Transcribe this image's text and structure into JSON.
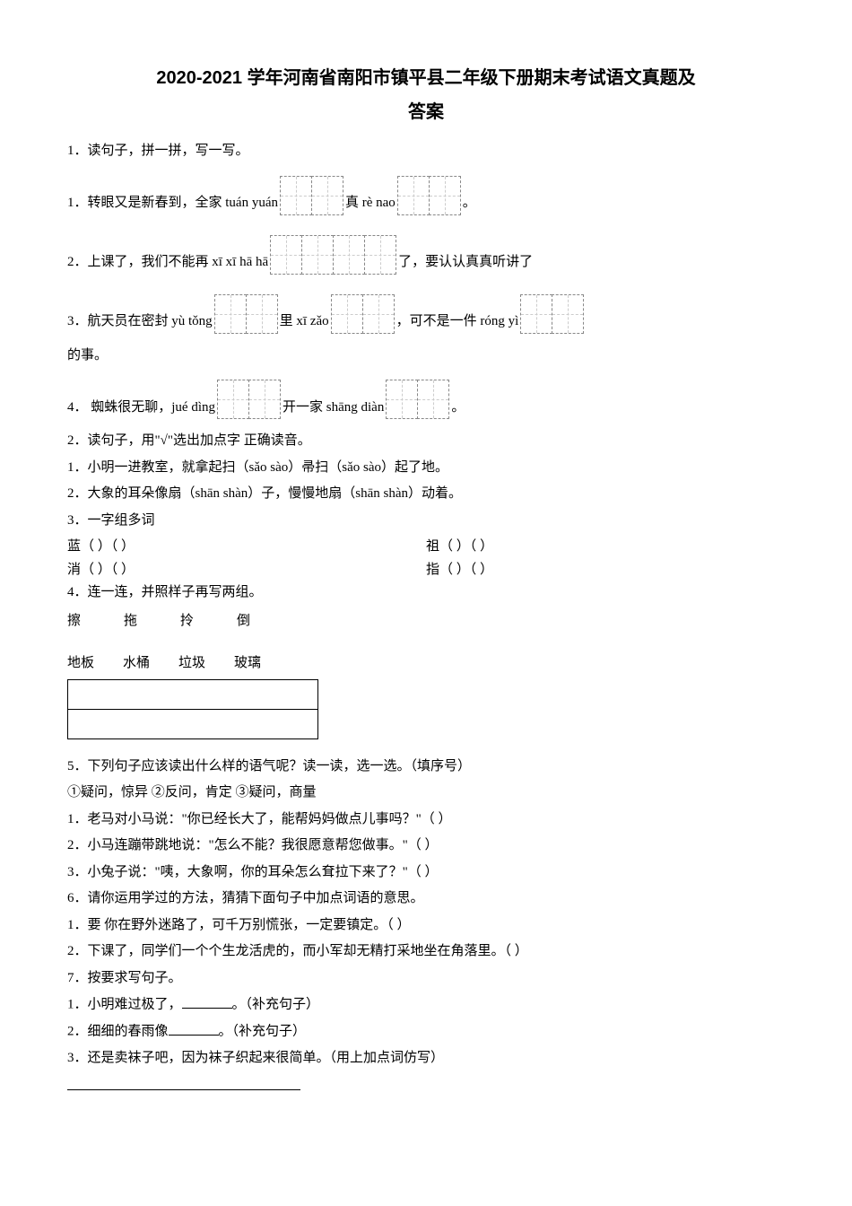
{
  "title_line1": "2020-2021 学年河南省南阳市镇平县二年级下册期末考试语文真题及",
  "title_line2": "答案",
  "q1": {
    "stem": "1．读句子，拼一拼，写一写。",
    "s1_a": "1．转眼又是新春到，全家 tuán yuán",
    "s1_b": "真 rè nao",
    "s1_c": "。",
    "s2_a": "2．上课了，我们不能再 xī xī hā hā",
    "s2_b": "了，要认认真真听讲了",
    "s3_a": "3．航天员在密封 yù tǒng",
    "s3_b": "里 xī zǎo",
    "s3_c": "，可不是一件 róng yì",
    "s3_d": "的事。",
    "s4_a": "4． 蜘蛛很无聊，jué dìng",
    "s4_b": "开一家 shāng diàn",
    "s4_c": "。"
  },
  "q2": {
    "stem": "2．读句子，用\"√\"选出加点字  正确读音。",
    "s1": "1．小明一进教室，就拿起扫（sǎo    sào）帚扫（sǎo    sào）起了地。",
    "s2": "2．大象的耳朵像扇（shān    shàn）子，慢慢地扇（shān    shàn）动着。"
  },
  "q3": {
    "stem": "3．一字组多词",
    "r1a": "蓝（        ）（        ）",
    "r1b": "祖（        ）（        ）",
    "r2a": "消（        ）（        ）",
    "r2b": "指（        ）（        ）"
  },
  "q4": {
    "stem": "4．连一连，并照样子再写两组。",
    "top": [
      "擦",
      "拖",
      "拎",
      "倒"
    ],
    "bottom": [
      "地板",
      "水桶",
      "垃圾",
      "玻璃"
    ]
  },
  "q5": {
    "stem": "5．下列句子应该读出什么样的语气呢？读一读，选一选。（填序号）",
    "opts": "①疑问，惊异        ②反问，肯定        ③疑问，商量",
    "s1": "1．老马对小马说：\"你已经长大了，能帮妈妈做点儿事吗？\"（        ）",
    "s2": "2．小马连蹦带跳地说：\"怎么不能？我很愿意帮您做事。\"（        ）",
    "s3": "3．小兔子说：\"咦，大象啊，你的耳朵怎么耷拉下来了？\"（        ）"
  },
  "q6": {
    "stem": "6．请你运用学过的方法，猜猜下面句子中加点词语的意思。",
    "s1": "1．要  你在野外迷路了，可千万别慌张，一定要镇定。（        ）",
    "s2": "2．下课了，同学们一个个生龙活虎的，而小军却无精打采地坐在角落里。（        ）"
  },
  "q7": {
    "stem": "7．按要求写句子。",
    "s1a": "1．小明难过极了，",
    "s1b": "。（补充句子）",
    "s2a": "2．细细的春雨像",
    "s2b": "。（补充句子）",
    "s3": "3．还是卖袜子吧，因为袜子织起来很简单。（用上加点词仿写）"
  }
}
